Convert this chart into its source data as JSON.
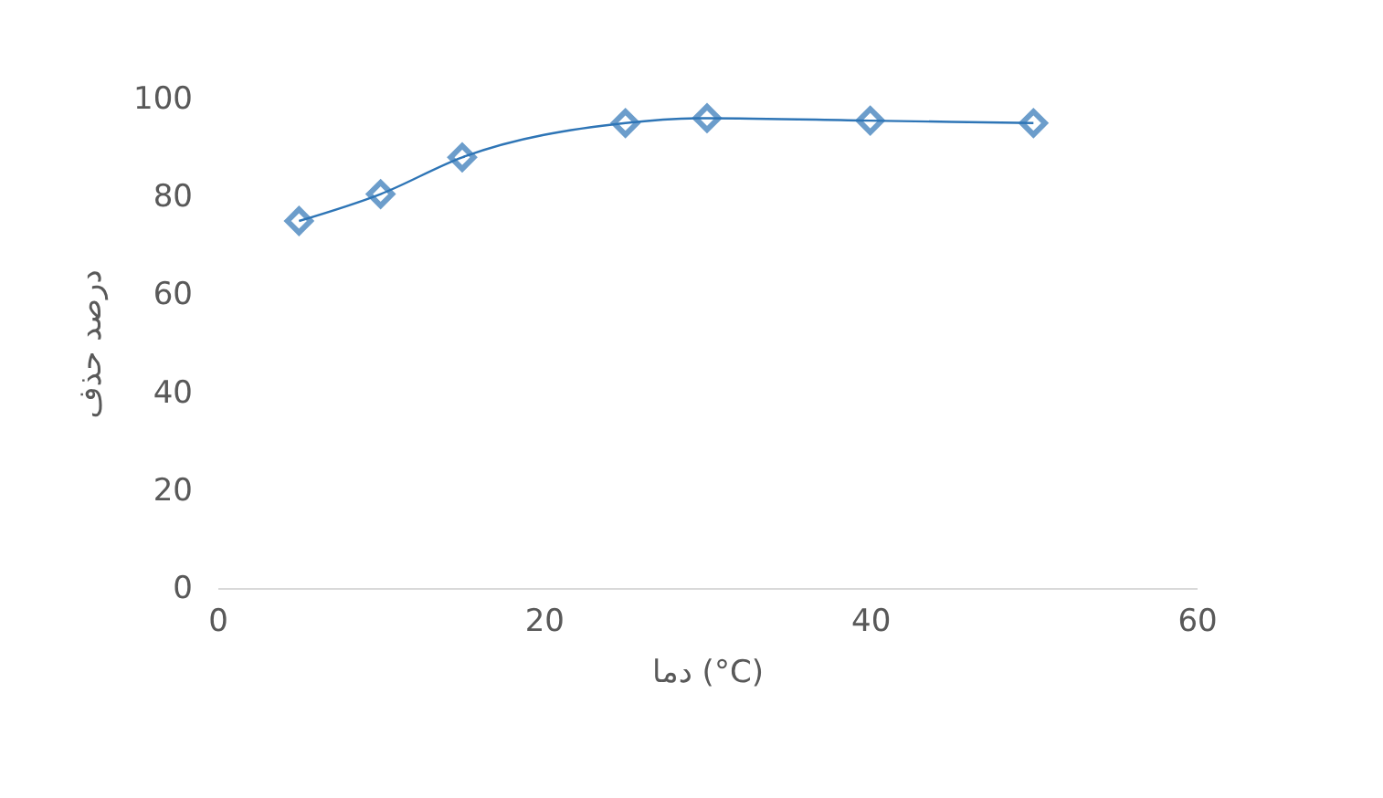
{
  "chart_data": {
    "type": "line",
    "xlabel": "دما (°C)",
    "ylabel": "درصد حذف",
    "x": [
      5,
      10,
      15,
      25,
      30,
      40,
      50
    ],
    "series": [
      {
        "color": "#2e75b6",
        "values": [
          75,
          80.5,
          88,
          95,
          96,
          95.5,
          95
        ]
      }
    ],
    "xlim": [
      0,
      60
    ],
    "xticks": [
      0,
      20,
      40,
      60
    ],
    "ylim": [
      0,
      100
    ],
    "yticks": [
      0,
      20,
      40,
      60,
      80,
      100
    ],
    "marker": "diamond",
    "line_style": "solid",
    "grid": false
  }
}
